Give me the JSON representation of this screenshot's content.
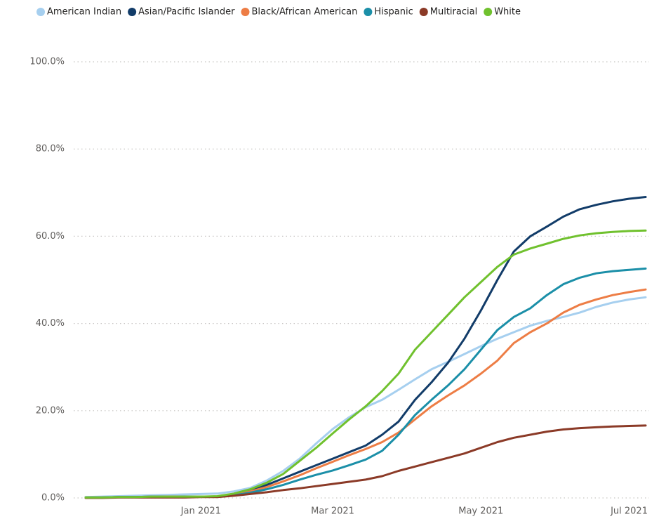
{
  "chart_data": {
    "type": "line",
    "categories": [
      null,
      null,
      null,
      null,
      null,
      null,
      null,
      "Jan 2021",
      null,
      null,
      null,
      null,
      null,
      null,
      null,
      "Mar 2021",
      null,
      null,
      null,
      null,
      null,
      null,
      null,
      null,
      "May 2021",
      null,
      null,
      null,
      null,
      null,
      null,
      null,
      null,
      "Jul 2021",
      null
    ],
    "ylim": [
      0,
      100
    ],
    "yticks": [
      {
        "value": 0,
        "label": "0.0%"
      },
      {
        "value": 20,
        "label": "20.0%"
      },
      {
        "value": 40,
        "label": "40.0%"
      },
      {
        "value": 60,
        "label": "60.0%"
      },
      {
        "value": 80,
        "label": "80.0%"
      },
      {
        "value": 100,
        "label": "100.0%"
      }
    ],
    "grid": true,
    "legend": "top",
    "series": [
      {
        "name": "American Indian",
        "color": "#a6cfef",
        "values": [
          0.2,
          0.3,
          0.4,
          0.5,
          0.6,
          0.7,
          0.8,
          0.9,
          1.0,
          1.5,
          2.3,
          4,
          6.2,
          9,
          12.5,
          15.8,
          18.5,
          20.8,
          22.5,
          24.8,
          27.2,
          29.5,
          31.2,
          33,
          34.8,
          36.5,
          38,
          39.5,
          40.6,
          41.5,
          42.5,
          43.8,
          44.8,
          45.5,
          46
        ]
      },
      {
        "name": "Asian/Pacific Islander",
        "color": "#123c69",
        "values": [
          0.1,
          0.1,
          0.2,
          0.2,
          0.3,
          0.3,
          0.3,
          0.3,
          0.3,
          0.8,
          1.8,
          3,
          4.5,
          6,
          7.5,
          9,
          10.5,
          12,
          14.5,
          17.5,
          22.5,
          26.5,
          31,
          36.5,
          43,
          50,
          56.5,
          60,
          62.2,
          64.5,
          66.2,
          67.2,
          68,
          68.6,
          69
        ]
      },
      {
        "name": "Black/African American",
        "color": "#ed7d45",
        "values": [
          0.1,
          0.1,
          0.2,
          0.2,
          0.2,
          0.3,
          0.3,
          0.3,
          0.3,
          0.7,
          1.5,
          2.5,
          3.8,
          5.2,
          6.8,
          8.3,
          9.8,
          11.2,
          12.8,
          15,
          18,
          21,
          23.5,
          25.8,
          28.5,
          31.5,
          35.5,
          38,
          40,
          42.5,
          44.3,
          45.5,
          46.5,
          47.2,
          47.8
        ]
      },
      {
        "name": "Hispanic",
        "color": "#1b8fa8",
        "values": [
          0.1,
          0.1,
          0.2,
          0.2,
          0.2,
          0.2,
          0.3,
          0.3,
          0.3,
          0.6,
          1.2,
          2,
          3,
          4.2,
          5.3,
          6.3,
          7.5,
          8.8,
          10.8,
          14.5,
          19,
          22.5,
          25.8,
          29.5,
          34,
          38.5,
          41.5,
          43.5,
          46.5,
          49,
          50.5,
          51.5,
          52,
          52.3,
          52.6
        ]
      },
      {
        "name": "Multiracial",
        "color": "#8b3a27",
        "values": [
          0,
          0,
          0.1,
          0.1,
          0.1,
          0.1,
          0.1,
          0.2,
          0.2,
          0.5,
          0.9,
          1.3,
          1.8,
          2.2,
          2.7,
          3.2,
          3.7,
          4.2,
          5,
          6.2,
          7.2,
          8.2,
          9.2,
          10.2,
          11.5,
          12.8,
          13.8,
          14.5,
          15.2,
          15.7,
          16,
          16.2,
          16.4,
          16.5,
          16.6
        ]
      },
      {
        "name": "White",
        "color": "#70c12e",
        "values": [
          0.1,
          0.1,
          0.2,
          0.2,
          0.3,
          0.3,
          0.3,
          0.3,
          0.4,
          1,
          2,
          3.5,
          5.5,
          8.5,
          11.5,
          14.8,
          18,
          21,
          24.5,
          28.5,
          34,
          38,
          42,
          46,
          49.5,
          53,
          55.8,
          57.2,
          58.3,
          59.4,
          60.2,
          60.7,
          61,
          61.2,
          61.3
        ]
      }
    ]
  }
}
